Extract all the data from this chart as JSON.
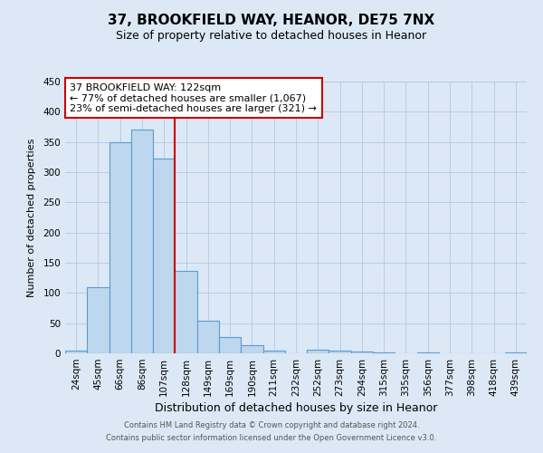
{
  "title": "37, BROOKFIELD WAY, HEANOR, DE75 7NX",
  "subtitle": "Size of property relative to detached houses in Heanor",
  "xlabel": "Distribution of detached houses by size in Heanor",
  "ylabel": "Number of detached properties",
  "bar_labels": [
    "24sqm",
    "45sqm",
    "66sqm",
    "86sqm",
    "107sqm",
    "128sqm",
    "149sqm",
    "169sqm",
    "190sqm",
    "211sqm",
    "232sqm",
    "252sqm",
    "273sqm",
    "294sqm",
    "315sqm",
    "335sqm",
    "356sqm",
    "377sqm",
    "398sqm",
    "418sqm",
    "439sqm"
  ],
  "bar_values": [
    5,
    110,
    350,
    370,
    322,
    136,
    54,
    27,
    14,
    4,
    0,
    6,
    5,
    3,
    1,
    0,
    1,
    0,
    0,
    0,
    2
  ],
  "bar_color": "#bdd7ee",
  "bar_edge_color": "#5b9bd5",
  "vline_x": 4.5,
  "vline_color": "#cc0000",
  "ylim": [
    0,
    450
  ],
  "yticks": [
    0,
    50,
    100,
    150,
    200,
    250,
    300,
    350,
    400,
    450
  ],
  "annotation_text": "37 BROOKFIELD WAY: 122sqm\n← 77% of detached houses are smaller (1,067)\n23% of semi-detached houses are larger (321) →",
  "annotation_box_facecolor": "#ffffff",
  "annotation_box_edgecolor": "#cc0000",
  "footer_line1": "Contains HM Land Registry data © Crown copyright and database right 2024.",
  "footer_line2": "Contains public sector information licensed under the Open Government Licence v3.0.",
  "background_color": "#dce8f5",
  "grid_color": "#aec8e8",
  "title_fontsize": 11,
  "subtitle_fontsize": 9,
  "xlabel_fontsize": 9,
  "ylabel_fontsize": 8,
  "tick_fontsize": 7.5,
  "annotation_fontsize": 8,
  "footer_fontsize": 6
}
